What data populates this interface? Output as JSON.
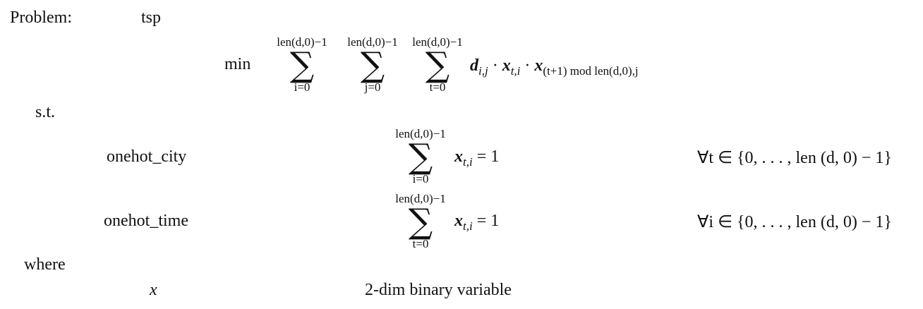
{
  "header": {
    "problem_label": "Problem:",
    "problem_name": "tsp"
  },
  "objective": {
    "sense": "min",
    "sums": [
      {
        "upper": "len(d,0)−1",
        "lower": "i=0"
      },
      {
        "upper": "len(d,0)−1",
        "lower": "j=0"
      },
      {
        "upper": "len(d,0)−1",
        "lower": "t=0"
      }
    ],
    "term": {
      "d": "d",
      "d_sub": "i,j",
      "dot1": "·",
      "x1": "x",
      "x1_sub": "t,i",
      "dot2": "·",
      "x2": "x",
      "x2_sub": "(t+1) mod len(d,0),j"
    }
  },
  "st_label": "s.t.",
  "constraints": [
    {
      "name": "onehot_city",
      "sum_upper": "len(d,0)−1",
      "sum_lower": "i=0",
      "var": "x",
      "var_sub": "t,i",
      "rhs": "= 1",
      "forall": "∀t ∈ {0, . . . , len (d, 0) − 1}"
    },
    {
      "name": "onehot_time",
      "sum_upper": "len(d,0)−1",
      "sum_lower": "t=0",
      "var": "x",
      "var_sub": "t,i",
      "rhs": "= 1",
      "forall": "∀i ∈ {0, . . . , len (d, 0) − 1}"
    }
  ],
  "where_label": "where",
  "variables": [
    {
      "symbol": "x",
      "description": "2-dim binary variable"
    }
  ]
}
